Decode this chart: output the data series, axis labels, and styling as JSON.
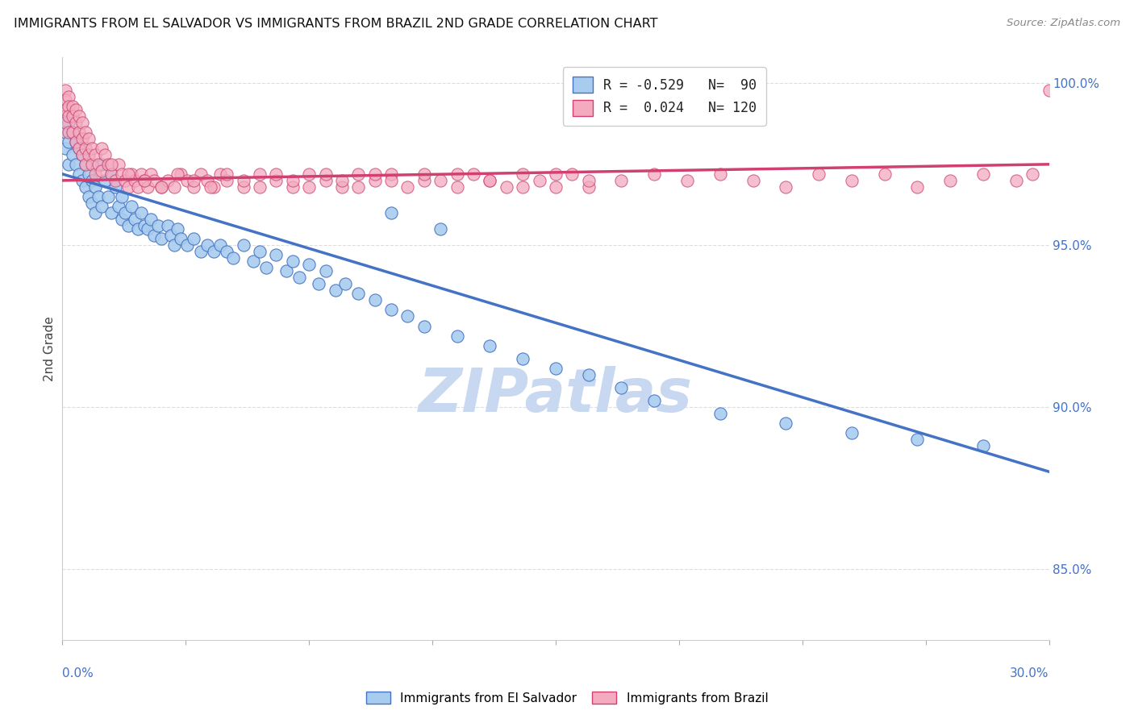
{
  "title": "IMMIGRANTS FROM EL SALVADOR VS IMMIGRANTS FROM BRAZIL 2ND GRADE CORRELATION CHART",
  "source_text": "Source: ZipAtlas.com",
  "ylabel": "2nd Grade",
  "right_yticks": [
    "85.0%",
    "90.0%",
    "95.0%",
    "100.0%"
  ],
  "right_ytick_vals": [
    0.85,
    0.9,
    0.95,
    1.0
  ],
  "legend_blue_label": "Immigrants from El Salvador",
  "legend_pink_label": "Immigrants from Brazil",
  "blue_color": "#A8CCEE",
  "pink_color": "#F4AABF",
  "blue_line_color": "#4472C4",
  "pink_line_color": "#D04070",
  "xlim": [
    0.0,
    0.3
  ],
  "ylim": [
    0.828,
    1.008
  ],
  "blue_trend_x": [
    0.0,
    0.3
  ],
  "blue_trend_y": [
    0.972,
    0.88
  ],
  "pink_trend_x": [
    0.0,
    0.3
  ],
  "pink_trend_y": [
    0.97,
    0.975
  ],
  "watermark": "ZIPatlas",
  "watermark_color": "#C8D8F0",
  "background_color": "#FFFFFF",
  "blue_scatter_x": [
    0.001,
    0.001,
    0.001,
    0.002,
    0.002,
    0.002,
    0.003,
    0.003,
    0.004,
    0.004,
    0.005,
    0.005,
    0.006,
    0.006,
    0.007,
    0.007,
    0.008,
    0.008,
    0.009,
    0.009,
    0.01,
    0.01,
    0.011,
    0.012,
    0.012,
    0.013,
    0.014,
    0.015,
    0.015,
    0.016,
    0.017,
    0.018,
    0.018,
    0.019,
    0.02,
    0.021,
    0.022,
    0.023,
    0.024,
    0.025,
    0.026,
    0.027,
    0.028,
    0.029,
    0.03,
    0.032,
    0.033,
    0.034,
    0.035,
    0.036,
    0.038,
    0.04,
    0.042,
    0.044,
    0.046,
    0.048,
    0.05,
    0.052,
    0.055,
    0.058,
    0.06,
    0.062,
    0.065,
    0.068,
    0.07,
    0.072,
    0.075,
    0.078,
    0.08,
    0.083,
    0.086,
    0.09,
    0.095,
    0.1,
    0.105,
    0.11,
    0.12,
    0.13,
    0.14,
    0.15,
    0.16,
    0.17,
    0.18,
    0.2,
    0.22,
    0.24,
    0.26,
    0.28,
    0.1,
    0.115
  ],
  "blue_scatter_y": [
    0.99,
    0.985,
    0.98,
    0.988,
    0.982,
    0.975,
    0.985,
    0.978,
    0.982,
    0.975,
    0.98,
    0.972,
    0.978,
    0.97,
    0.975,
    0.968,
    0.972,
    0.965,
    0.97,
    0.963,
    0.968,
    0.96,
    0.965,
    0.975,
    0.962,
    0.97,
    0.965,
    0.972,
    0.96,
    0.968,
    0.962,
    0.958,
    0.965,
    0.96,
    0.956,
    0.962,
    0.958,
    0.955,
    0.96,
    0.956,
    0.955,
    0.958,
    0.953,
    0.956,
    0.952,
    0.956,
    0.953,
    0.95,
    0.955,
    0.952,
    0.95,
    0.952,
    0.948,
    0.95,
    0.948,
    0.95,
    0.948,
    0.946,
    0.95,
    0.945,
    0.948,
    0.943,
    0.947,
    0.942,
    0.945,
    0.94,
    0.944,
    0.938,
    0.942,
    0.936,
    0.938,
    0.935,
    0.933,
    0.93,
    0.928,
    0.925,
    0.922,
    0.919,
    0.915,
    0.912,
    0.91,
    0.906,
    0.902,
    0.898,
    0.895,
    0.892,
    0.89,
    0.888,
    0.96,
    0.955
  ],
  "pink_scatter_x": [
    0.001,
    0.001,
    0.001,
    0.001,
    0.002,
    0.002,
    0.002,
    0.002,
    0.003,
    0.003,
    0.003,
    0.004,
    0.004,
    0.004,
    0.005,
    0.005,
    0.005,
    0.006,
    0.006,
    0.006,
    0.007,
    0.007,
    0.007,
    0.008,
    0.008,
    0.009,
    0.009,
    0.01,
    0.01,
    0.011,
    0.012,
    0.012,
    0.013,
    0.014,
    0.015,
    0.016,
    0.017,
    0.018,
    0.019,
    0.02,
    0.021,
    0.022,
    0.023,
    0.024,
    0.025,
    0.026,
    0.027,
    0.028,
    0.03,
    0.032,
    0.034,
    0.036,
    0.038,
    0.04,
    0.042,
    0.044,
    0.046,
    0.048,
    0.05,
    0.055,
    0.06,
    0.065,
    0.07,
    0.075,
    0.08,
    0.085,
    0.09,
    0.095,
    0.1,
    0.11,
    0.12,
    0.13,
    0.14,
    0.15,
    0.16,
    0.17,
    0.18,
    0.19,
    0.2,
    0.21,
    0.22,
    0.23,
    0.24,
    0.25,
    0.26,
    0.27,
    0.28,
    0.29,
    0.295,
    0.3,
    0.015,
    0.02,
    0.025,
    0.03,
    0.035,
    0.04,
    0.045,
    0.05,
    0.055,
    0.06,
    0.065,
    0.07,
    0.075,
    0.08,
    0.085,
    0.09,
    0.095,
    0.1,
    0.105,
    0.11,
    0.115,
    0.12,
    0.125,
    0.13,
    0.135,
    0.14,
    0.145,
    0.15,
    0.155,
    0.16
  ],
  "pink_scatter_y": [
    0.998,
    0.995,
    0.992,
    0.988,
    0.996,
    0.993,
    0.99,
    0.985,
    0.993,
    0.99,
    0.985,
    0.992,
    0.988,
    0.982,
    0.99,
    0.985,
    0.98,
    0.988,
    0.983,
    0.978,
    0.985,
    0.98,
    0.975,
    0.983,
    0.978,
    0.98,
    0.975,
    0.978,
    0.972,
    0.975,
    0.98,
    0.973,
    0.978,
    0.975,
    0.972,
    0.97,
    0.975,
    0.972,
    0.97,
    0.968,
    0.972,
    0.97,
    0.968,
    0.972,
    0.97,
    0.968,
    0.972,
    0.97,
    0.968,
    0.97,
    0.968,
    0.972,
    0.97,
    0.968,
    0.972,
    0.97,
    0.968,
    0.972,
    0.97,
    0.968,
    0.972,
    0.97,
    0.968,
    0.972,
    0.97,
    0.968,
    0.972,
    0.97,
    0.972,
    0.97,
    0.972,
    0.97,
    0.968,
    0.972,
    0.968,
    0.97,
    0.972,
    0.97,
    0.972,
    0.97,
    0.968,
    0.972,
    0.97,
    0.972,
    0.968,
    0.97,
    0.972,
    0.97,
    0.972,
    0.998,
    0.975,
    0.972,
    0.97,
    0.968,
    0.972,
    0.97,
    0.968,
    0.972,
    0.97,
    0.968,
    0.972,
    0.97,
    0.968,
    0.972,
    0.97,
    0.968,
    0.972,
    0.97,
    0.968,
    0.972,
    0.97,
    0.968,
    0.972,
    0.97,
    0.968,
    0.972,
    0.97,
    0.968,
    0.972,
    0.97
  ]
}
